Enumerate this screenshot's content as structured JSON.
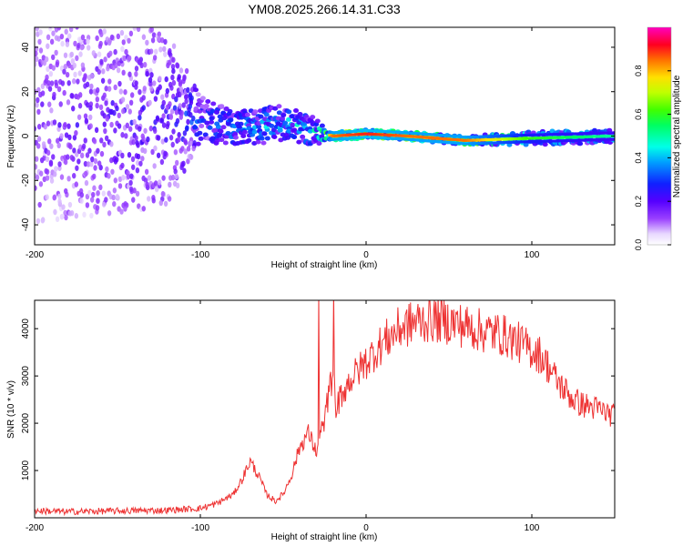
{
  "figure_title": "YM08.2025.266.14.31.C33",
  "chart_data": [
    {
      "type": "heatmap",
      "title": "YM08.2025.266.14.31.C33",
      "xlabel": "Height of straight line (km)",
      "ylabel": "Frequency (Hz)",
      "xlim": [
        -200,
        150
      ],
      "ylim": [
        -49,
        49
      ],
      "xticks": [
        -200,
        -100,
        0,
        100
      ],
      "yticks": [
        -40,
        -20,
        0,
        20,
        40
      ],
      "colorbar": {
        "label": "Normalized spectral amplitude",
        "range": [
          0,
          1
        ],
        "ticks": [
          "0.0",
          "0.2",
          "0.4",
          "0.6",
          "0.8"
        ],
        "colormap": "rainbow (white-purple-blue-cyan-green-yellow-red-magenta)"
      },
      "description_points": [
        {
          "x": -200,
          "center_hz": 6,
          "spread_hz": 45,
          "amplitude": 0.2
        },
        {
          "x": -120,
          "center_hz": 8,
          "spread_hz": 40,
          "amplitude": 0.25
        },
        {
          "x": -100,
          "center_hz": 8,
          "spread_hz": 10,
          "amplitude": 0.35
        },
        {
          "x": -80,
          "center_hz": 3,
          "spread_hz": 8,
          "amplitude": 0.4
        },
        {
          "x": -50,
          "center_hz": 6,
          "spread_hz": 8,
          "amplitude": 0.45
        },
        {
          "x": -30,
          "center_hz": 2,
          "spread_hz": 6,
          "amplitude": 0.5
        },
        {
          "x": -20,
          "center_hz": 0,
          "spread_hz": 2,
          "amplitude": 0.85
        },
        {
          "x": 0,
          "center_hz": 1,
          "spread_hz": 2,
          "amplitude": 0.9
        },
        {
          "x": 25,
          "center_hz": 0,
          "spread_hz": 2,
          "amplitude": 0.85
        },
        {
          "x": 60,
          "center_hz": -2,
          "spread_hz": 2,
          "amplitude": 0.85
        },
        {
          "x": 100,
          "center_hz": -1,
          "spread_hz": 3,
          "amplitude": 0.6
        },
        {
          "x": 150,
          "center_hz": 0,
          "spread_hz": 3,
          "amplitude": 0.5
        }
      ]
    },
    {
      "type": "line",
      "title": "",
      "xlabel": "Height of straight line (km)",
      "ylabel": "SNR (10 * v/v)",
      "xlim": [
        -200,
        150
      ],
      "ylim": [
        0,
        4600
      ],
      "xticks": [
        -200,
        -100,
        0,
        100
      ],
      "yticks": [
        1000,
        2000,
        3000,
        4000
      ],
      "series": [
        {
          "name": "SNR",
          "color": "#ee3333",
          "x": [
            -200,
            -180,
            -160,
            -140,
            -120,
            -100,
            -90,
            -80,
            -75,
            -70,
            -65,
            -60,
            -55,
            -50,
            -45,
            -40,
            -35,
            -30,
            -25,
            -22,
            -20,
            -18,
            -15,
            -10,
            -5,
            0,
            10,
            20,
            30,
            40,
            50,
            60,
            70,
            80,
            90,
            100,
            105,
            110,
            115,
            120,
            125,
            130,
            140,
            150
          ],
          "y": [
            150,
            130,
            140,
            150,
            160,
            200,
            300,
            500,
            800,
            1200,
            900,
            500,
            350,
            500,
            900,
            1500,
            1800,
            1400,
            2100,
            2700,
            3100,
            2300,
            2600,
            2900,
            3100,
            3300,
            3700,
            4000,
            4150,
            4200,
            4150,
            4050,
            3950,
            3900,
            3750,
            3550,
            3450,
            3200,
            2900,
            2700,
            2500,
            2400,
            2300,
            2150
          ]
        }
      ]
    }
  ],
  "colors": {
    "line": "#ee3333",
    "axis": "#000000",
    "background": "#ffffff"
  }
}
